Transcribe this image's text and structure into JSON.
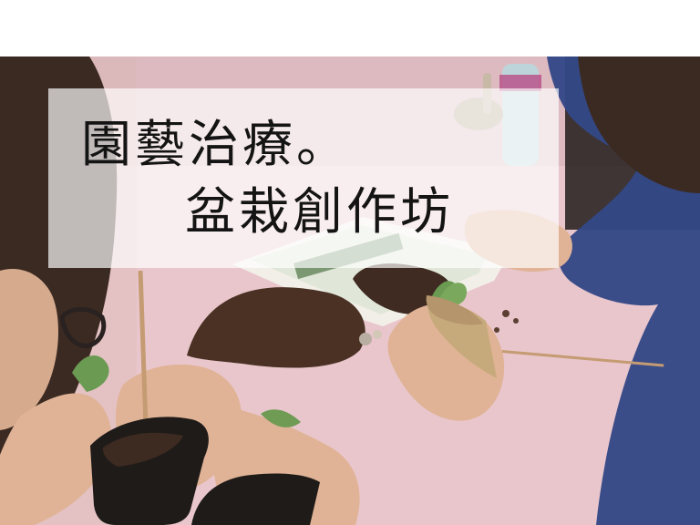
{
  "banner": {
    "title_line_1": "園藝治療。",
    "title_line_2": "盆栽創作坊"
  },
  "photo": {
    "description_icon": "gardening-workshop-photo-icon",
    "colors": {
      "tablecloth": "#e9c6cc",
      "soil": "#4a3124",
      "pot": "#1e1b19",
      "skin": "#e0b396",
      "sleeve": "#334886",
      "hair": "#3b2a22"
    }
  }
}
